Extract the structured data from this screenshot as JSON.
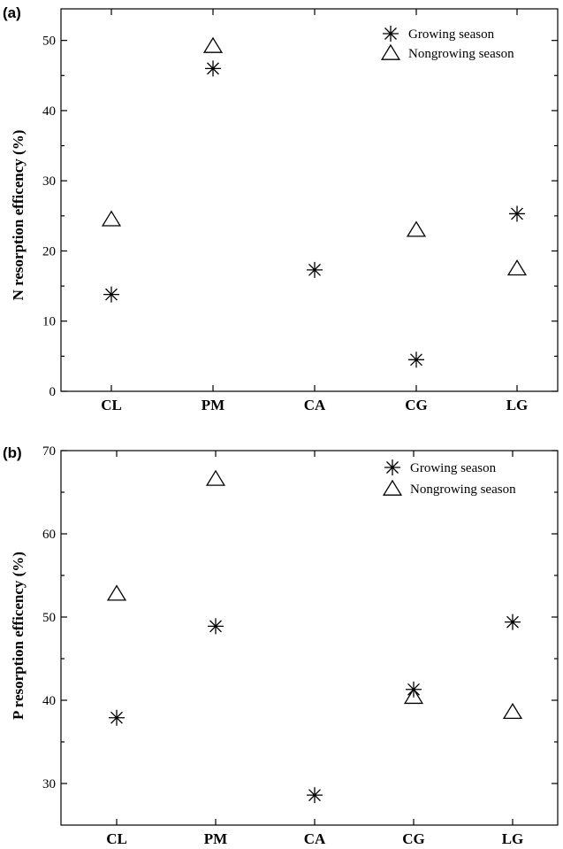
{
  "chart_data": [
    {
      "type": "scatter",
      "panel_label": "(a)",
      "ylabel": "N resorption efficency (%)",
      "xlabel": "",
      "categories": [
        "CL",
        "PM",
        "CA",
        "CG",
        "LG"
      ],
      "ylim": [
        0,
        54.5
      ],
      "yticks": [
        0,
        10,
        20,
        30,
        40,
        50
      ],
      "grid": false,
      "legend_position": "top-right",
      "series": [
        {
          "name": "Growing season",
          "marker": "asterisk",
          "values": [
            13.8,
            46.0,
            17.3,
            4.5,
            25.3
          ]
        },
        {
          "name": "Nongrowing season",
          "marker": "triangle",
          "values": [
            24.5,
            49.2,
            null,
            23.0,
            17.5
          ]
        }
      ]
    },
    {
      "type": "scatter",
      "panel_label": "(b)",
      "ylabel": "P resorption efficency (%)",
      "xlabel": "",
      "categories": [
        "CL",
        "PM",
        "CA",
        "CG",
        "LG"
      ],
      "ylim": [
        25,
        70
      ],
      "yticks": [
        30,
        40,
        50,
        60,
        70
      ],
      "grid": false,
      "legend_position": "top-right",
      "series": [
        {
          "name": "Growing season",
          "marker": "asterisk",
          "values": [
            37.9,
            48.9,
            28.6,
            41.3,
            49.4
          ]
        },
        {
          "name": "Nongrowing season",
          "marker": "triangle",
          "values": [
            52.8,
            66.6,
            null,
            40.4,
            38.6
          ]
        }
      ]
    }
  ]
}
